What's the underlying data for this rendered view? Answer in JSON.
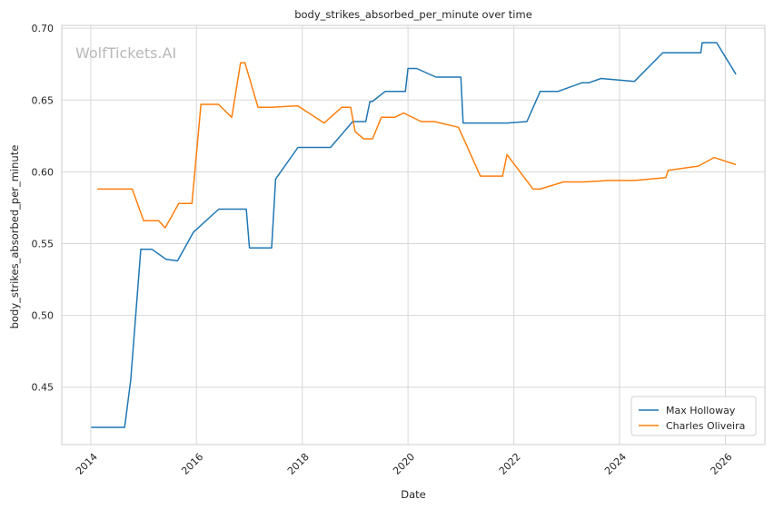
{
  "chart_data": {
    "type": "line",
    "title": "body_strikes_absorbed_per_minute over time",
    "xlabel": "Date",
    "ylabel": "body_strikes_absorbed_per_minute",
    "watermark": "WolfTickets.AI",
    "xlim": [
      "2013-06-15",
      "2026-10-01"
    ],
    "ylim": [
      0.41,
      0.702
    ],
    "x_ticks": [
      "2014",
      "2016",
      "2018",
      "2020",
      "2022",
      "2024",
      "2026"
    ],
    "y_ticks": [
      "0.45",
      "0.50",
      "0.55",
      "0.60",
      "0.65",
      "0.70"
    ],
    "grid": true,
    "legend_position": "lower-right",
    "series": [
      {
        "name": "Max Holloway",
        "color": "#1f77b4",
        "x": [
          "2014-01-04",
          "2014-06-01",
          "2014-08-23",
          "2014-10-04",
          "2014-12-13",
          "2015-02-28",
          "2015-06-06",
          "2015-08-23",
          "2015-12-12",
          "2016-06-03",
          "2016-12-10",
          "2017-01-01",
          "2017-06-03",
          "2017-07-01",
          "2017-12-02",
          "2018-07-15",
          "2018-12-15",
          "2019-03-15",
          "2019-04-13",
          "2019-04-30",
          "2019-07-27",
          "2019-12-14",
          "2020-01-01",
          "2020-03-01",
          "2020-07-12",
          "2020-12-31",
          "2021-01-16",
          "2021-11-13",
          "2022-04-01",
          "2022-07-02",
          "2022-11-01",
          "2023-04-15",
          "2023-06-01",
          "2023-08-26",
          "2024-04-13",
          "2024-10-26",
          "2025-07-15",
          "2025-07-25",
          "2025-11-01",
          "2026-03-15"
        ],
        "values": [
          0.422,
          0.422,
          0.422,
          0.455,
          0.546,
          0.546,
          0.539,
          0.538,
          0.558,
          0.574,
          0.574,
          0.547,
          0.547,
          0.595,
          0.617,
          0.617,
          0.635,
          0.635,
          0.649,
          0.649,
          0.656,
          0.656,
          0.672,
          0.672,
          0.666,
          0.666,
          0.634,
          0.634,
          0.635,
          0.656,
          0.656,
          0.662,
          0.662,
          0.665,
          0.663,
          0.683,
          0.683,
          0.69,
          0.69,
          0.668
        ]
      },
      {
        "name": "Charles Oliveira",
        "color": "#ff7f0e",
        "x": [
          "2014-02-15",
          "2014-05-31",
          "2014-10-15",
          "2015-01-01",
          "2015-04-15",
          "2015-05-30",
          "2015-09-01",
          "2015-12-01",
          "2016-02-01",
          "2016-06-01",
          "2016-09-01",
          "2016-11-01",
          "2016-12-01",
          "2017-03-01",
          "2017-06-01",
          "2017-12-01",
          "2018-06-01",
          "2018-10-01",
          "2018-12-01",
          "2019-01-01",
          "2019-03-01",
          "2019-05-01",
          "2019-07-01",
          "2019-10-01",
          "2019-12-01",
          "2020-04-01",
          "2020-07-01",
          "2020-12-15",
          "2021-05-15",
          "2021-10-15",
          "2021-11-15",
          "2022-05-14",
          "2022-07-01",
          "2022-12-10",
          "2023-05-06",
          "2023-10-21",
          "2024-04-13",
          "2024-11-16",
          "2024-12-01",
          "2025-06-28",
          "2025-10-15",
          "2026-03-15"
        ],
        "values": [
          0.588,
          0.588,
          0.588,
          0.566,
          0.566,
          0.561,
          0.578,
          0.578,
          0.647,
          0.647,
          0.638,
          0.676,
          0.676,
          0.645,
          0.645,
          0.646,
          0.634,
          0.645,
          0.645,
          0.628,
          0.623,
          0.623,
          0.638,
          0.638,
          0.641,
          0.635,
          0.635,
          0.631,
          0.597,
          0.597,
          0.612,
          0.588,
          0.588,
          0.593,
          0.593,
          0.594,
          0.594,
          0.596,
          0.601,
          0.604,
          0.61,
          0.605
        ]
      }
    ]
  }
}
